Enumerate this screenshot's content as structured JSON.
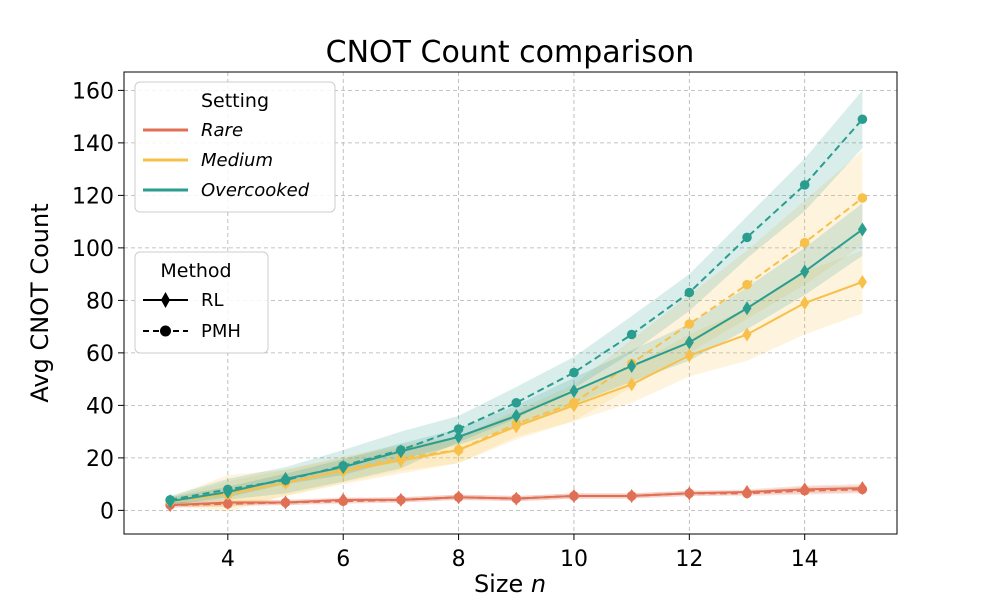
{
  "chart_data": {
    "type": "line",
    "title": "CNOT Count comparison",
    "xlabel_prefix": "Size ",
    "xlabel_var": "n",
    "ylabel": "Avg CNOT Count",
    "xlim": [
      2.2,
      15.6
    ],
    "ylim": [
      -9,
      167
    ],
    "xticks": [
      4,
      6,
      8,
      10,
      12,
      14
    ],
    "yticks": [
      0,
      20,
      40,
      60,
      80,
      100,
      120,
      140,
      160
    ],
    "grid": true,
    "x": [
      3,
      4,
      5,
      6,
      7,
      8,
      9,
      10,
      11,
      12,
      13,
      14,
      15
    ],
    "settings": [
      {
        "name": "Rare",
        "color": "#e07055",
        "rl": {
          "values": [
            2,
            3,
            3,
            4,
            4,
            5,
            4.5,
            5.5,
            5.5,
            6.5,
            7,
            8,
            8.5
          ],
          "band": [
            1,
            1,
            1,
            1,
            1,
            1,
            1,
            1,
            1,
            1,
            1,
            1.5,
            1.5
          ]
        },
        "pmh": {
          "values": [
            2,
            2.5,
            3,
            3.5,
            4,
            5,
            4.5,
            5.5,
            5.5,
            6.5,
            6.5,
            7.5,
            8
          ],
          "band": [
            1,
            1,
            1,
            1,
            1,
            1,
            1,
            1,
            1,
            1,
            1,
            1.5,
            1.5
          ]
        }
      },
      {
        "name": "Medium",
        "color": "#f7c04a",
        "rl": {
          "values": [
            3.5,
            6.5,
            10.5,
            15,
            19,
            23,
            32,
            40,
            48,
            59,
            67,
            79,
            87
          ],
          "band": [
            1.5,
            7,
            5,
            5,
            5,
            5,
            5,
            6,
            7,
            8,
            10,
            12,
            12
          ]
        },
        "pmh": {
          "values": [
            3.5,
            6,
            10.5,
            15.5,
            20,
            23,
            33,
            41,
            56,
            71,
            86,
            102,
            119
          ],
          "band": [
            1.5,
            5,
            5,
            5,
            5,
            5,
            5,
            7,
            9,
            11,
            13,
            16,
            18
          ]
        }
      },
      {
        "name": "Overcooked",
        "color": "#2a9d8f",
        "rl": {
          "values": [
            3.5,
            7,
            12,
            16.5,
            22.5,
            28,
            36,
            45.5,
            55,
            64,
            77,
            91,
            107
          ],
          "band": [
            1.5,
            2,
            2,
            3,
            3,
            3,
            4,
            5,
            6,
            7,
            8,
            9,
            10
          ]
        },
        "pmh": {
          "values": [
            4,
            8,
            11.5,
            17,
            23,
            31,
            41,
            52.5,
            67,
            83,
            104,
            124,
            149
          ],
          "band": [
            1.5,
            4,
            5,
            6,
            7,
            5,
            6,
            6,
            7,
            7,
            8,
            10,
            11
          ]
        }
      }
    ],
    "legend_setting": {
      "title": "Setting",
      "entries": [
        "Rare",
        "Medium",
        "Overcooked"
      ],
      "location": "upper-left"
    },
    "legend_method": {
      "title": "Method",
      "entries": [
        "RL",
        "PMH"
      ],
      "location": "center-left"
    }
  }
}
